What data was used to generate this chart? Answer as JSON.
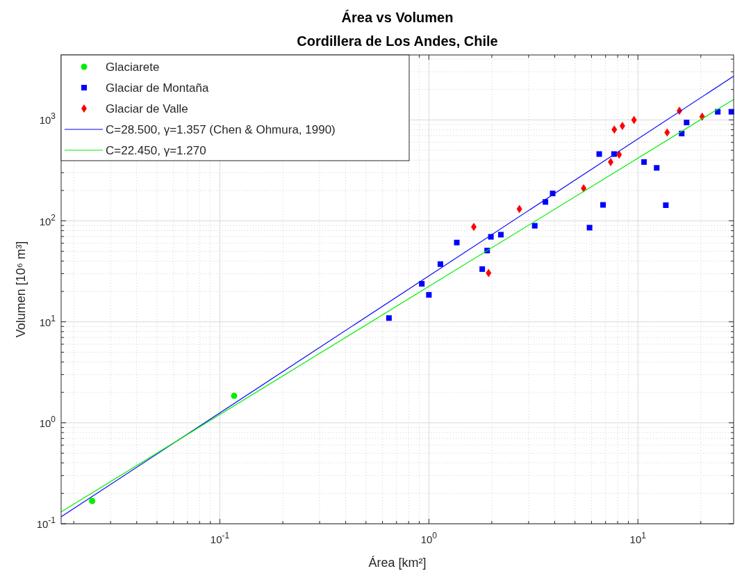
{
  "chart_data": {
    "type": "scatter",
    "title": "Área vs Volumen",
    "subtitle": "Cordillera de Los Andes, Chile",
    "xlabel": "Área [km²]",
    "ylabel": "Volumen [10⁶ m³]",
    "log": "xy",
    "grid": true,
    "legend": "top left",
    "xlim": [
      0.0174,
      28.7
    ],
    "ylim": [
      0.1,
      4400
    ],
    "xticks": [
      {
        "value": 0.02,
        "label": null
      },
      {
        "value": 0.03,
        "label": null
      },
      {
        "value": 0.04,
        "label": null
      },
      {
        "value": 0.05,
        "label": null
      },
      {
        "value": 0.06,
        "label": null
      },
      {
        "value": 0.07,
        "label": null
      },
      {
        "value": 0.08,
        "label": null
      },
      {
        "value": 0.09,
        "label": null
      },
      {
        "value": 0.1,
        "label": "10$^{-1}$"
      },
      {
        "value": 0.2,
        "label": null
      },
      {
        "value": 0.3,
        "label": null
      },
      {
        "value": 0.4,
        "label": null
      },
      {
        "value": 0.5,
        "label": null
      },
      {
        "value": 0.6,
        "label": null
      },
      {
        "value": 0.7,
        "label": null
      },
      {
        "value": 0.8,
        "label": null
      },
      {
        "value": 0.9,
        "label": null
      },
      {
        "value": 1,
        "label": "10$^{0}$"
      },
      {
        "value": 2,
        "label": null
      },
      {
        "value": 3,
        "label": null
      },
      {
        "value": 4,
        "label": null
      },
      {
        "value": 5,
        "label": null
      },
      {
        "value": 6,
        "label": null
      },
      {
        "value": 7,
        "label": null
      },
      {
        "value": 8,
        "label": null
      },
      {
        "value": 9,
        "label": null
      },
      {
        "value": 10,
        "label": "10$^{1}$"
      },
      {
        "value": 20,
        "label": null
      }
    ],
    "yticks": [
      {
        "value": 0.1,
        "label": "10$^{-1}$"
      },
      {
        "value": 0.2,
        "label": null
      },
      {
        "value": 0.3,
        "label": null
      },
      {
        "value": 0.4,
        "label": null
      },
      {
        "value": 0.5,
        "label": null
      },
      {
        "value": 0.6,
        "label": null
      },
      {
        "value": 0.7,
        "label": null
      },
      {
        "value": 0.8,
        "label": null
      },
      {
        "value": 0.9,
        "label": null
      },
      {
        "value": 1,
        "label": "10$^{0}$"
      },
      {
        "value": 2,
        "label": null
      },
      {
        "value": 3,
        "label": null
      },
      {
        "value": 4,
        "label": null
      },
      {
        "value": 5,
        "label": null
      },
      {
        "value": 6,
        "label": null
      },
      {
        "value": 7,
        "label": null
      },
      {
        "value": 8,
        "label": null
      },
      {
        "value": 9,
        "label": null
      },
      {
        "value": 10,
        "label": "10$^{1}$"
      },
      {
        "value": 20,
        "label": null
      },
      {
        "value": 30,
        "label": null
      },
      {
        "value": 40,
        "label": null
      },
      {
        "value": 50,
        "label": null
      },
      {
        "value": 60,
        "label": null
      },
      {
        "value": 70,
        "label": null
      },
      {
        "value": 80,
        "label": null
      },
      {
        "value": 90,
        "label": null
      },
      {
        "value": 100,
        "label": "10$^{2}$"
      },
      {
        "value": 200,
        "label": null
      },
      {
        "value": 300,
        "label": null
      },
      {
        "value": 400,
        "label": null
      },
      {
        "value": 500,
        "label": null
      },
      {
        "value": 600,
        "label": null
      },
      {
        "value": 700,
        "label": null
      },
      {
        "value": 800,
        "label": null
      },
      {
        "value": 900,
        "label": null
      },
      {
        "value": 1000,
        "label": "10$^{3}$"
      },
      {
        "value": 2000,
        "label": null
      },
      {
        "value": 3000,
        "label": null
      },
      {
        "value": 4000,
        "label": null
      }
    ],
    "series": [
      {
        "name": "Glaciarete",
        "type": "scatter",
        "marker": "circle",
        "color": "#00ee00",
        "x": [
          0.0245,
          0.117
        ],
        "values": [
          0.168,
          1.85
        ]
      },
      {
        "name": "Glaciar de Montaña",
        "type": "scatter",
        "marker": "square",
        "color": "#0000ff",
        "x": [
          0.644,
          0.925,
          1.0,
          1.135,
          1.36,
          1.8,
          1.9,
          1.98,
          2.21,
          3.21,
          3.61,
          3.91,
          5.87,
          6.81,
          6.53,
          7.69,
          10.7,
          12.3,
          13.6,
          16.2,
          17.1,
          24.1,
          28.0
        ],
        "values": [
          10.9,
          23.8,
          18.5,
          37.3,
          61,
          33.3,
          50.8,
          69.5,
          73,
          89.4,
          154,
          187,
          85.7,
          144,
          459,
          459,
          383,
          335,
          143,
          733,
          943,
          1204,
          1204
        ]
      },
      {
        "name": "Glaciar de Valle",
        "type": "scatter",
        "marker": "diamond",
        "color": "#ff0000",
        "x": [
          1.64,
          1.93,
          2.71,
          5.5,
          7.41,
          8.13,
          7.71,
          8.43,
          9.58,
          13.8,
          15.8,
          20.3
        ],
        "values": [
          87,
          30.4,
          131,
          210,
          383,
          454,
          803,
          874,
          1000,
          750,
          1231,
          1076
        ]
      },
      {
        "name": "C=28.500, γ=1.357 (Chen & Ohmura, 1990)",
        "type": "line",
        "marker": "none",
        "color": "#0000ff",
        "x": [
          0.0174,
          28.7
        ],
        "values": [
          0.117,
          2713
        ]
      },
      {
        "name": "C=22.450, γ=1.270",
        "type": "line",
        "marker": "none",
        "color": "#00ee00",
        "x": [
          0.0174,
          28.7
        ],
        "values": [
          0.131,
          1594
        ]
      }
    ]
  }
}
